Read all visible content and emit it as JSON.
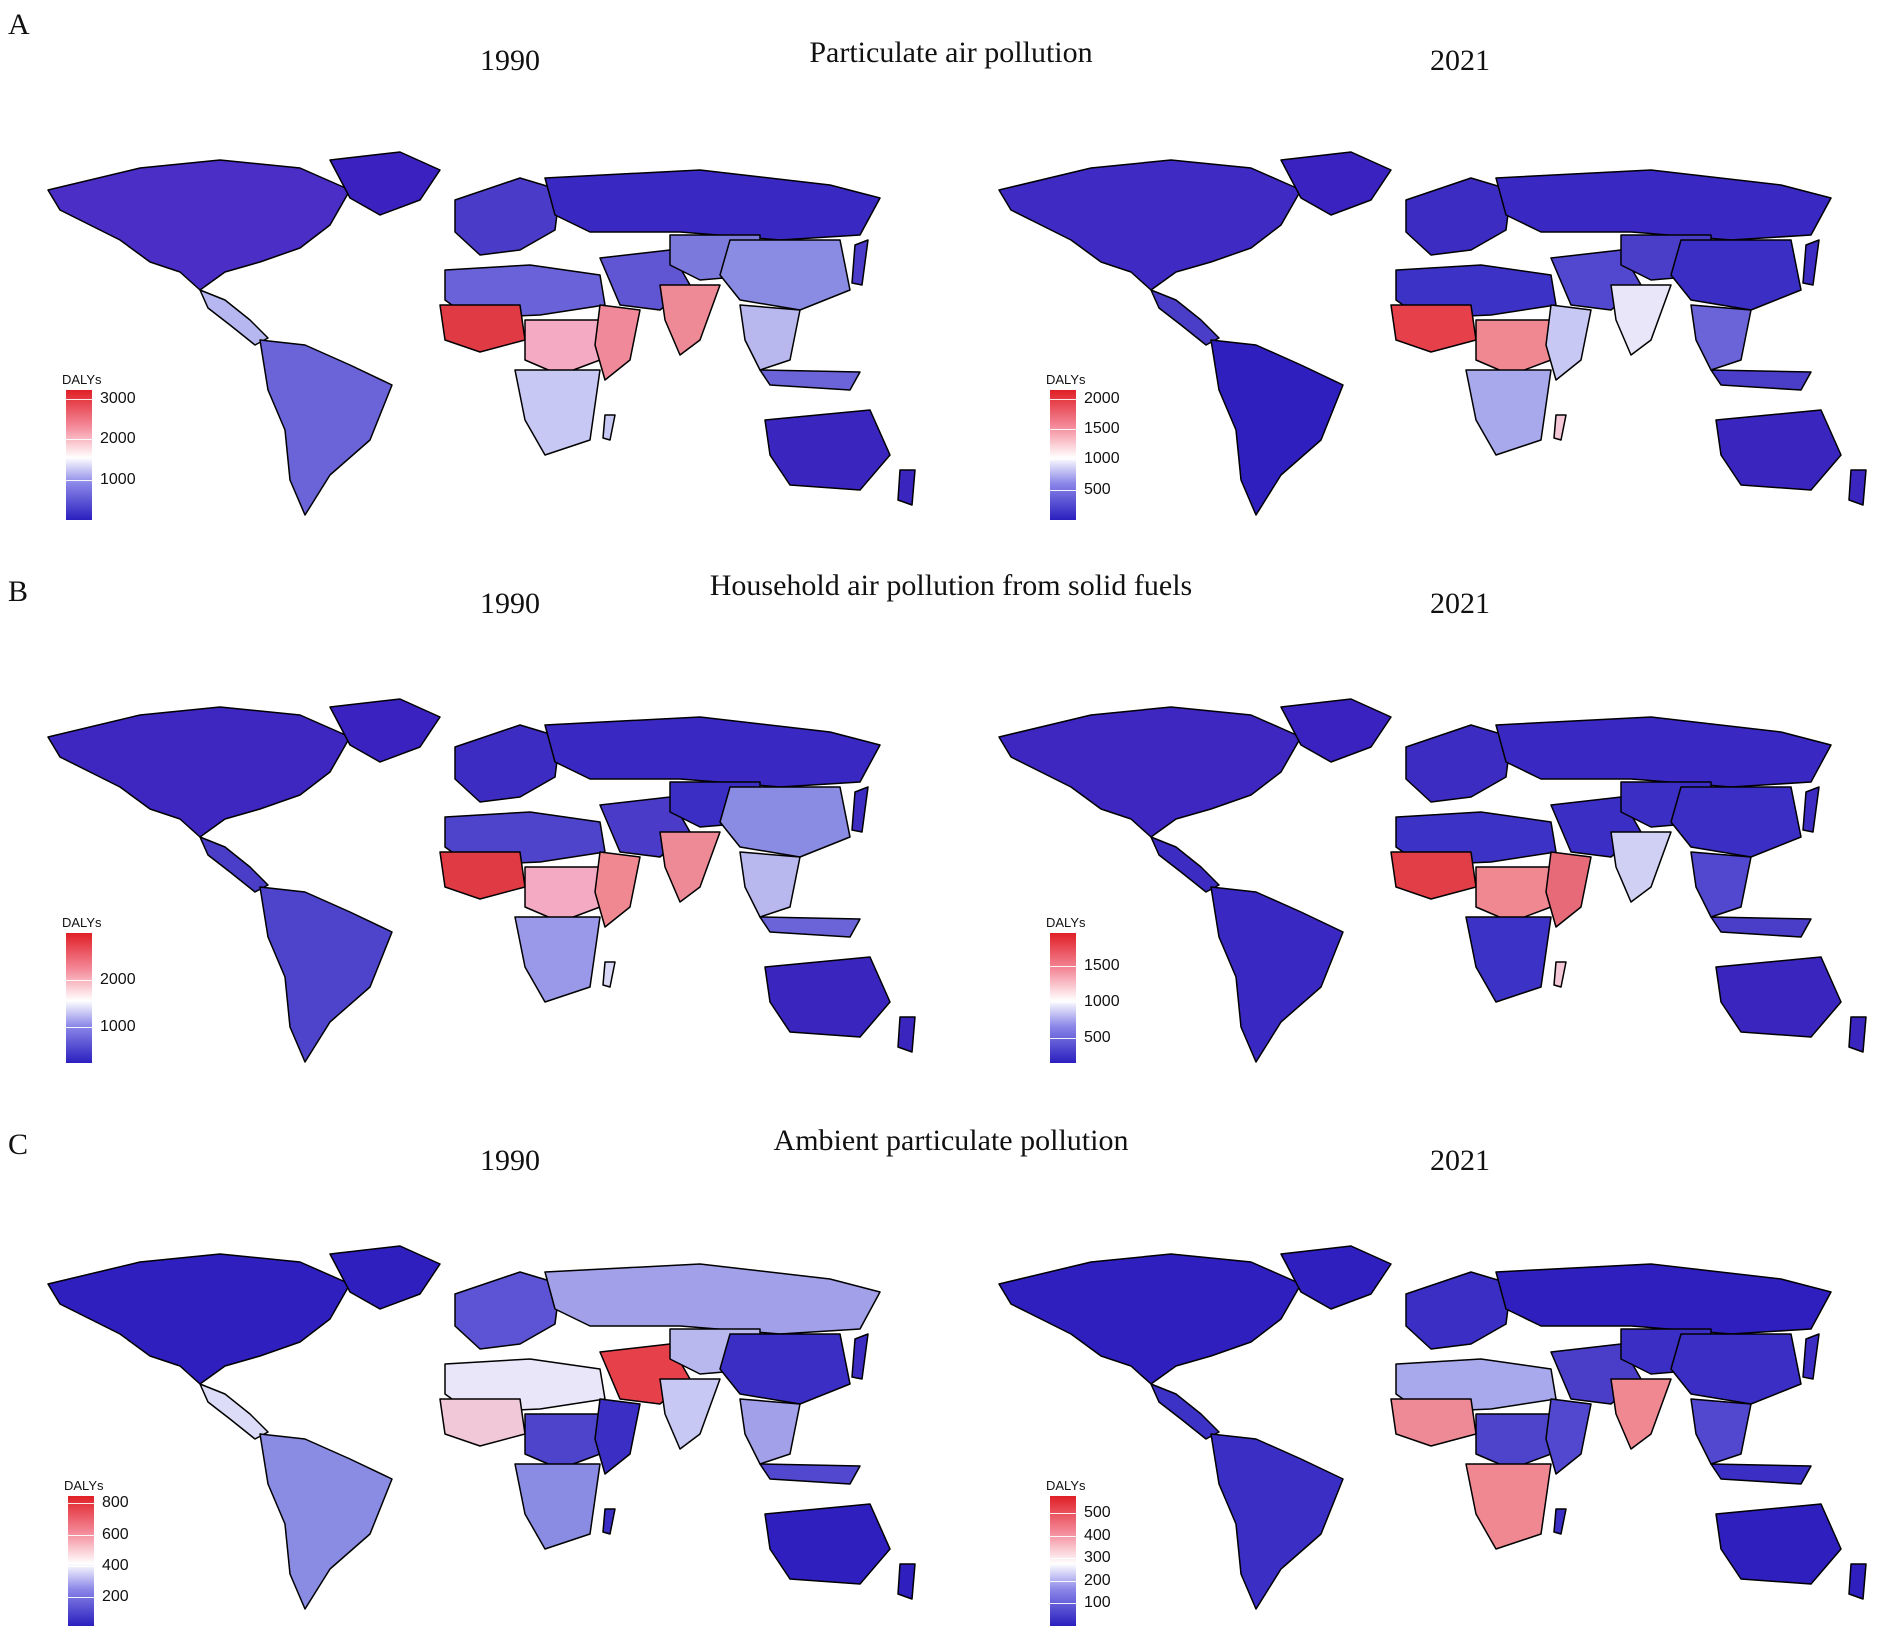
{
  "colors": {
    "low": "#2a1fbf",
    "mid": "#ffffff",
    "high": "#e01f26",
    "ocean": "#ffffff",
    "border": "#000000"
  },
  "panels": [
    {
      "letter": "A",
      "title": "Particulate air pollution",
      "maps": [
        {
          "year": "1990",
          "legend_title": "DALYs",
          "ticks": [
            "3000",
            "2000",
            "1000"
          ],
          "tick_fracs": [
            0.07,
            0.38,
            0.69
          ]
        },
        {
          "year": "2021",
          "legend_title": "DALYs",
          "ticks": [
            "2000",
            "1500",
            "1000",
            "500"
          ],
          "tick_fracs": [
            0.07,
            0.3,
            0.53,
            0.77
          ]
        }
      ]
    },
    {
      "letter": "B",
      "title": "Household air pollution from solid fuels",
      "maps": [
        {
          "year": "1990",
          "legend_title": "DALYs",
          "ticks": [
            "2000",
            "1000"
          ],
          "tick_fracs": [
            0.36,
            0.72
          ]
        },
        {
          "year": "2021",
          "legend_title": "DALYs",
          "ticks": [
            "1500",
            "1000",
            "500"
          ],
          "tick_fracs": [
            0.25,
            0.53,
            0.81
          ]
        }
      ]
    },
    {
      "letter": "C",
      "title": "Ambient particulate pollution",
      "maps": [
        {
          "year": "1990",
          "legend_title": "DALYs",
          "ticks": [
            "800",
            "600",
            "400",
            "200"
          ],
          "tick_fracs": [
            0.05,
            0.3,
            0.54,
            0.78
          ]
        },
        {
          "year": "2021",
          "legend_title": "DALYs",
          "ticks": [
            "500",
            "400",
            "300",
            "200",
            "100"
          ],
          "tick_fracs": [
            0.13,
            0.31,
            0.48,
            0.65,
            0.82
          ]
        }
      ]
    }
  ]
}
